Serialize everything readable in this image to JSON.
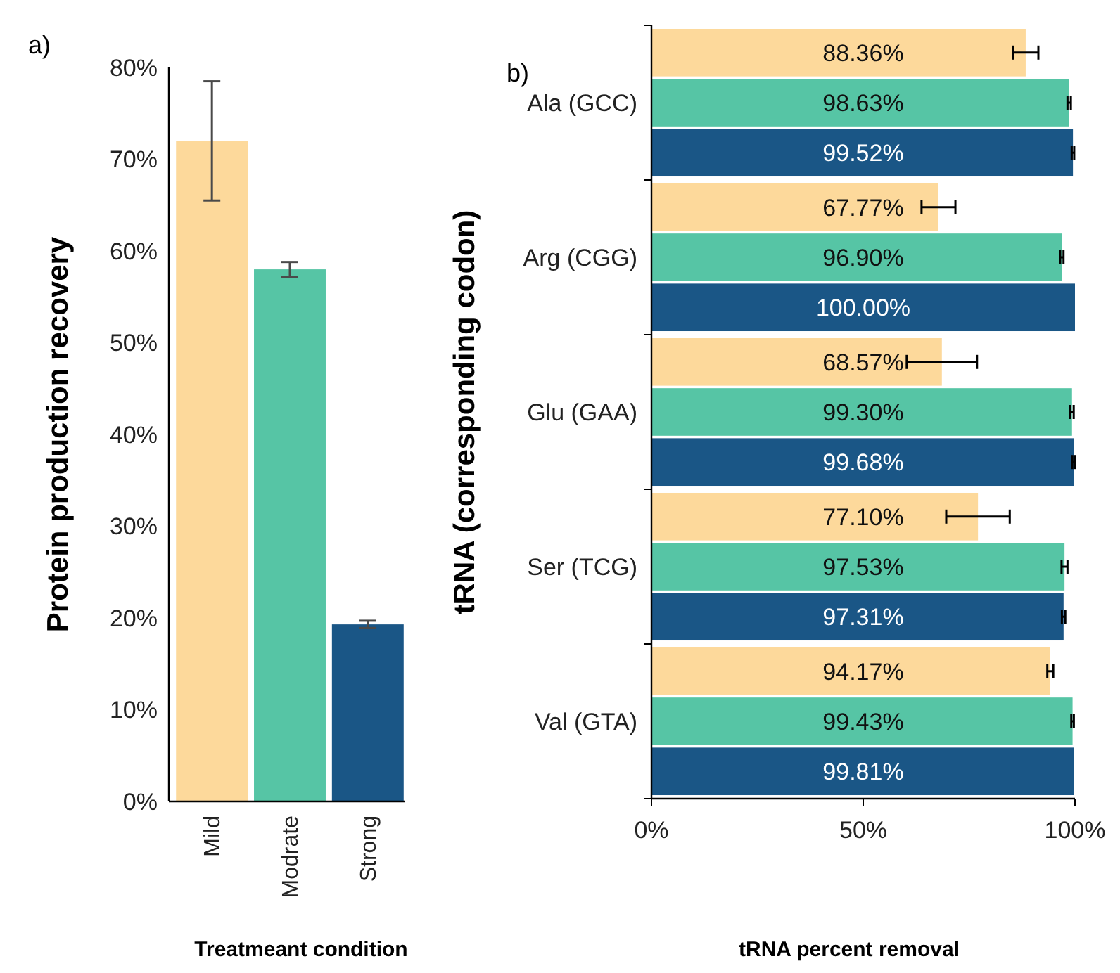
{
  "chart_data": [
    {
      "type": "bar",
      "categories": [
        "Mild",
        "Modrate",
        "Strong"
      ],
      "values": [
        72,
        58,
        19.3
      ],
      "colors": [
        "#fdd99b",
        "#56c5a5",
        "#1a5686"
      ],
      "errors": [
        6.5,
        0.8,
        0.4
      ],
      "ylim": [
        0,
        80
      ],
      "yticks": [
        {
          "value": 0,
          "label": "0%"
        },
        {
          "value": 10,
          "label": "10%"
        },
        {
          "value": 20,
          "label": "20%"
        },
        {
          "value": 30,
          "label": "30%"
        },
        {
          "value": 40,
          "label": "40%"
        },
        {
          "value": 50,
          "label": "50%"
        },
        {
          "value": 60,
          "label": "60%"
        },
        {
          "value": 70,
          "label": "70%"
        },
        {
          "value": 80,
          "label": "80%"
        }
      ],
      "ylabel": "Protein production recovery",
      "xlabel": "Treatmeant condition",
      "annotations": [
        "a)"
      ]
    },
    {
      "type": "bar",
      "orientation": "horizontal",
      "categories": [
        "Ala (GCC)",
        "Arg (CGG)",
        "Glu (GAA)",
        "Ser (TCG)",
        "Val (GTA)"
      ],
      "series": [
        {
          "color": "#fdd99b",
          "values": [
            88.36,
            67.77,
            68.57,
            77.1,
            94.17
          ],
          "errors": [
            3,
            4,
            8.3,
            7.5,
            0.7
          ],
          "value_labels": [
            "88.36%",
            "67.77%",
            "68.57%",
            "77.10%",
            "94.17%"
          ]
        },
        {
          "color": "#56c5a5",
          "values": [
            98.63,
            96.9,
            99.3,
            97.53,
            99.43
          ],
          "errors": [
            0.4,
            0.4,
            0.4,
            0.7,
            0.3
          ],
          "value_labels": [
            "98.63%",
            "96.90%",
            "99.30%",
            "97.53%",
            "99.43%"
          ]
        },
        {
          "color": "#1a5686",
          "values": [
            99.52,
            100,
            99.68,
            97.31,
            99.81
          ],
          "errors": [
            0.3,
            null,
            0.3,
            0.4,
            null
          ],
          "value_labels": [
            "99.52%",
            "100.00%",
            "99.68%",
            "97.31%",
            "99.81%"
          ]
        }
      ],
      "xlim": [
        0,
        100
      ],
      "xticks": [
        {
          "value": 0,
          "label": "0%"
        },
        {
          "value": 50,
          "label": "50%"
        },
        {
          "value": 100,
          "label": "100%"
        }
      ],
      "ylabel": "tRNA (corresponding codon)",
      "xlabel": "tRNA percent removal",
      "annotations": [
        "b)"
      ]
    }
  ]
}
